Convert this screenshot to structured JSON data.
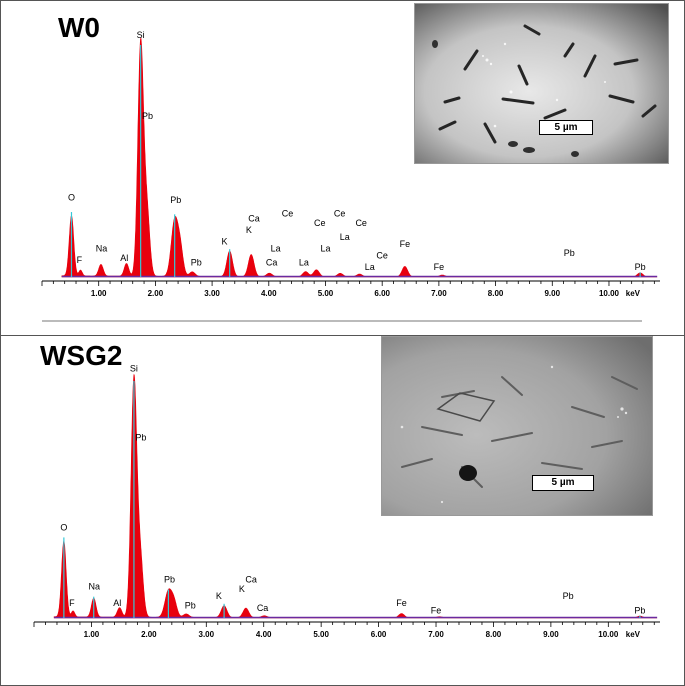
{
  "panels": [
    {
      "sample_label": "W0",
      "scale_bar_label": "5 µm"
    },
    {
      "sample_label": "WSG2",
      "scale_bar_label": "5 µm"
    }
  ],
  "chart_data": [
    {
      "type": "area",
      "title": "W0",
      "xlabel": "keV",
      "ylabel": "",
      "xlim": [
        0.0,
        10.9
      ],
      "ylim": [
        0,
        100
      ],
      "x_ticks": [
        "1.00",
        "2.00",
        "3.00",
        "4.00",
        "5.00",
        "6.00",
        "7.00",
        "8.00",
        "9.00",
        "10.00"
      ],
      "fill_color": "#e8000d",
      "outline_color": "#6a2aa0",
      "marker_color": "#35c8d8",
      "peaks": [
        {
          "x": 0.52,
          "y": 26,
          "w": 0.04
        },
        {
          "x": 0.68,
          "y": 2.5,
          "w": 0.03
        },
        {
          "x": 1.04,
          "y": 5,
          "w": 0.04
        },
        {
          "x": 1.49,
          "y": 5.5,
          "w": 0.04
        },
        {
          "x": 1.74,
          "y": 100,
          "w": 0.05
        },
        {
          "x": 1.85,
          "y": 28,
          "w": 0.05
        },
        {
          "x": 2.34,
          "y": 24,
          "w": 0.06
        },
        {
          "x": 2.44,
          "y": 11,
          "w": 0.05
        },
        {
          "x": 2.65,
          "y": 2,
          "w": 0.05
        },
        {
          "x": 3.31,
          "y": 11,
          "w": 0.05
        },
        {
          "x": 3.69,
          "y": 9.5,
          "w": 0.05
        },
        {
          "x": 4.01,
          "y": 1.5,
          "w": 0.05
        },
        {
          "x": 4.65,
          "y": 2.2,
          "w": 0.05
        },
        {
          "x": 4.84,
          "y": 3,
          "w": 0.05
        },
        {
          "x": 5.26,
          "y": 1.5,
          "w": 0.05
        },
        {
          "x": 5.6,
          "y": 1.2,
          "w": 0.05
        },
        {
          "x": 6.4,
          "y": 4.5,
          "w": 0.05
        },
        {
          "x": 7.06,
          "y": 0.8,
          "w": 0.05
        },
        {
          "x": 10.55,
          "y": 1.8,
          "w": 0.05
        }
      ],
      "marker_lines": [
        {
          "x": 0.52,
          "y": 28
        },
        {
          "x": 1.74,
          "y": 100
        },
        {
          "x": 2.34,
          "y": 27
        },
        {
          "x": 3.31,
          "y": 12
        },
        {
          "x": 10.55,
          "y": 2
        }
      ],
      "annotations": [
        {
          "text": "Si",
          "x": 1.74,
          "y": 103
        },
        {
          "text": "O",
          "x": 0.52,
          "y": 33
        },
        {
          "text": "Pb",
          "x": 1.86,
          "y": 68
        },
        {
          "text": "Pb",
          "x": 2.36,
          "y": 32
        },
        {
          "text": "F",
          "x": 0.66,
          "y": 6
        },
        {
          "text": "Na",
          "x": 1.05,
          "y": 11
        },
        {
          "text": "Al",
          "x": 1.45,
          "y": 7
        },
        {
          "text": "Pb",
          "x": 2.72,
          "y": 5
        },
        {
          "text": "K",
          "x": 3.22,
          "y": 14
        },
        {
          "text": "Ca",
          "x": 3.74,
          "y": 24
        },
        {
          "text": "K",
          "x": 3.65,
          "y": 19
        },
        {
          "text": "Ce",
          "x": 4.33,
          "y": 26
        },
        {
          "text": "La",
          "x": 4.12,
          "y": 11
        },
        {
          "text": "Ca",
          "x": 4.05,
          "y": 5
        },
        {
          "text": "Ce",
          "x": 4.9,
          "y": 22
        },
        {
          "text": "Ce",
          "x": 5.25,
          "y": 26
        },
        {
          "text": "La",
          "x": 4.62,
          "y": 5
        },
        {
          "text": "La",
          "x": 5.0,
          "y": 11
        },
        {
          "text": "La",
          "x": 5.34,
          "y": 16
        },
        {
          "text": "Ce",
          "x": 5.63,
          "y": 22
        },
        {
          "text": "La",
          "x": 5.78,
          "y": 3
        },
        {
          "text": "Ce",
          "x": 6.0,
          "y": 8
        },
        {
          "text": "Fe",
          "x": 6.4,
          "y": 13
        },
        {
          "text": "Fe",
          "x": 7.0,
          "y": 3
        },
        {
          "text": "Pb",
          "x": 9.3,
          "y": 9
        },
        {
          "text": "Pb",
          "x": 10.55,
          "y": 3
        }
      ]
    },
    {
      "type": "area",
      "title": "WSG2",
      "xlabel": "keV",
      "ylabel": "",
      "xlim": [
        0.0,
        10.9
      ],
      "ylim": [
        0,
        100
      ],
      "x_ticks": [
        "1.00",
        "2.00",
        "3.00",
        "4.00",
        "5.00",
        "6.00",
        "7.00",
        "8.00",
        "9.00",
        "10.00"
      ],
      "fill_color": "#e8000d",
      "outline_color": "#6a2aa0",
      "marker_color": "#35c8d8",
      "peaks": [
        {
          "x": 0.52,
          "y": 32,
          "w": 0.04
        },
        {
          "x": 0.68,
          "y": 2.5,
          "w": 0.03
        },
        {
          "x": 1.04,
          "y": 8,
          "w": 0.04
        },
        {
          "x": 1.49,
          "y": 4,
          "w": 0.04
        },
        {
          "x": 1.74,
          "y": 100,
          "w": 0.05
        },
        {
          "x": 1.85,
          "y": 25,
          "w": 0.05
        },
        {
          "x": 2.34,
          "y": 11,
          "w": 0.06
        },
        {
          "x": 2.44,
          "y": 6,
          "w": 0.05
        },
        {
          "x": 2.65,
          "y": 1.5,
          "w": 0.05
        },
        {
          "x": 3.31,
          "y": 5,
          "w": 0.05
        },
        {
          "x": 3.69,
          "y": 4,
          "w": 0.05
        },
        {
          "x": 4.01,
          "y": 0.8,
          "w": 0.05
        },
        {
          "x": 6.4,
          "y": 1.8,
          "w": 0.05
        },
        {
          "x": 7.06,
          "y": 0.5,
          "w": 0.05
        },
        {
          "x": 10.55,
          "y": 0.8,
          "w": 0.05
        }
      ],
      "marker_lines": [
        {
          "x": 0.52,
          "y": 34
        },
        {
          "x": 1.04,
          "y": 9
        },
        {
          "x": 1.74,
          "y": 100
        },
        {
          "x": 2.34,
          "y": 12
        },
        {
          "x": 3.31,
          "y": 6
        },
        {
          "x": 10.55,
          "y": 1
        }
      ],
      "annotations": [
        {
          "text": "Si",
          "x": 1.74,
          "y": 104
        },
        {
          "text": "Pb",
          "x": 1.86,
          "y": 75
        },
        {
          "text": "O",
          "x": 0.52,
          "y": 37
        },
        {
          "text": "Na",
          "x": 1.05,
          "y": 12
        },
        {
          "text": "F",
          "x": 0.66,
          "y": 5
        },
        {
          "text": "Al",
          "x": 1.45,
          "y": 5
        },
        {
          "text": "Pb",
          "x": 2.36,
          "y": 15
        },
        {
          "text": "Pb",
          "x": 2.72,
          "y": 4
        },
        {
          "text": "K",
          "x": 3.22,
          "y": 8
        },
        {
          "text": "Ca",
          "x": 3.78,
          "y": 15
        },
        {
          "text": "K",
          "x": 3.62,
          "y": 11
        },
        {
          "text": "Ca",
          "x": 3.98,
          "y": 3
        },
        {
          "text": "Fe",
          "x": 6.4,
          "y": 5
        },
        {
          "text": "Fe",
          "x": 7.0,
          "y": 2
        },
        {
          "text": "Pb",
          "x": 9.3,
          "y": 8
        },
        {
          "text": "Pb",
          "x": 10.55,
          "y": 2
        }
      ]
    }
  ]
}
